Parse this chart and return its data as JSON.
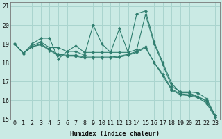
{
  "xlabel": "Humidex (Indice chaleur)",
  "ylabel": "",
  "background_color": "#caeae4",
  "grid_color": "#aad4ce",
  "line_color": "#2e7d6e",
  "xlim": [
    -0.5,
    23.5
  ],
  "ylim": [
    15,
    21.2
  ],
  "yticks": [
    15,
    16,
    17,
    18,
    19,
    20,
    21
  ],
  "xticks": [
    0,
    1,
    2,
    3,
    4,
    5,
    6,
    7,
    8,
    9,
    10,
    11,
    12,
    13,
    14,
    15,
    16,
    17,
    18,
    19,
    20,
    21,
    22,
    23
  ],
  "series": [
    [
      19.0,
      18.5,
      19.0,
      19.3,
      19.3,
      18.2,
      18.6,
      18.6,
      18.4,
      20.0,
      19.0,
      18.55,
      19.8,
      18.55,
      20.6,
      20.75,
      19.1,
      18.0,
      16.9,
      16.4,
      16.4,
      16.2,
      16.0,
      15.2
    ],
    [
      19.0,
      18.5,
      18.9,
      19.1,
      18.8,
      18.8,
      18.6,
      18.9,
      18.55,
      18.55,
      18.55,
      18.55,
      18.55,
      18.55,
      18.7,
      20.55,
      19.0,
      17.9,
      16.75,
      16.45,
      16.45,
      16.4,
      16.1,
      15.2
    ],
    [
      19.0,
      18.5,
      18.85,
      19.0,
      18.7,
      18.45,
      18.4,
      18.4,
      18.3,
      18.3,
      18.3,
      18.3,
      18.35,
      18.45,
      18.6,
      18.85,
      18.0,
      17.4,
      16.6,
      16.35,
      16.3,
      16.2,
      15.95,
      15.15
    ],
    [
      19.0,
      18.5,
      18.85,
      18.95,
      18.65,
      18.4,
      18.35,
      18.35,
      18.25,
      18.25,
      18.25,
      18.25,
      18.3,
      18.4,
      18.55,
      18.8,
      18.0,
      17.3,
      16.55,
      16.3,
      16.25,
      16.15,
      15.85,
      15.1
    ]
  ]
}
